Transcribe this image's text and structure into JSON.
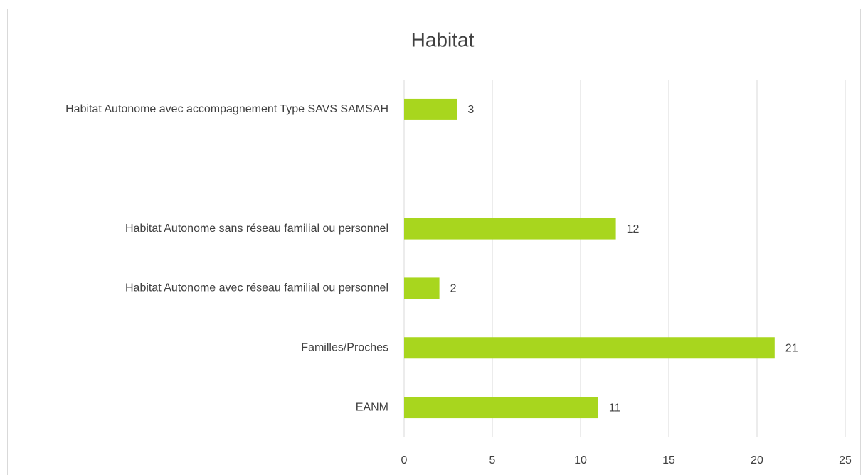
{
  "chart_data": {
    "type": "hbar",
    "title": "Habitat",
    "categories": [
      "Habitat Autonome avec accompagnement Type SAVS SAMSAH",
      null,
      "Habitat Autonome sans réseau familial ou personnel",
      "Habitat Autonome avec réseau familial ou personnel",
      "Familles/Proches",
      "EANM"
    ],
    "values": [
      3,
      null,
      12,
      2,
      21,
      11
    ],
    "color": "#a8d61e",
    "xlim": [
      0,
      25
    ],
    "xticks": [
      0,
      5,
      10,
      15,
      20,
      25
    ],
    "grid": true
  }
}
